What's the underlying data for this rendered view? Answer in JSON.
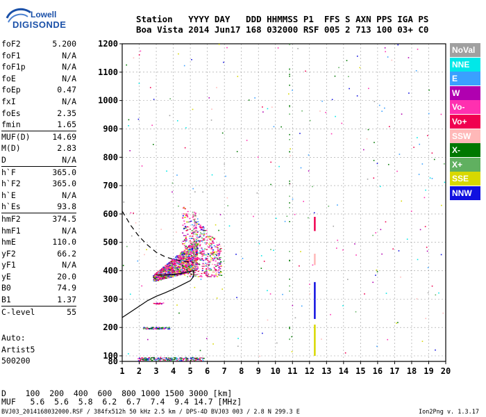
{
  "logo": {
    "line1": "Lowell",
    "line2": "DIGISONDE"
  },
  "header": {
    "labels": "Station   YYYY DAY   DDD HHMMSS P1  FFS S AXN PPS IGA PS",
    "values": "Boa Vista 2014 Jun17 168 032000 RSF 005 2 713 100 03+ C0"
  },
  "params": {
    "group1": [
      {
        "name": "foF2",
        "value": "5.200"
      },
      {
        "name": "foF1",
        "value": "N/A"
      },
      {
        "name": "foF1p",
        "value": "N/A"
      },
      {
        "name": "foE",
        "value": "N/A"
      },
      {
        "name": "foEp",
        "value": "0.47"
      },
      {
        "name": "fxI",
        "value": "N/A"
      },
      {
        "name": "foEs",
        "value": "2.35"
      },
      {
        "name": "fmin",
        "value": "1.65"
      }
    ],
    "group2": [
      {
        "name": "MUF(D)",
        "value": "14.69"
      },
      {
        "name": "M(D)",
        "value": "2.83"
      },
      {
        "name": "D",
        "value": "N/A"
      }
    ],
    "group3": [
      {
        "name": "h`F",
        "value": "365.0"
      },
      {
        "name": "h`F2",
        "value": "365.0"
      },
      {
        "name": "h`E",
        "value": "N/A"
      },
      {
        "name": "h`Es",
        "value": "93.8"
      }
    ],
    "group4": [
      {
        "name": "hmF2",
        "value": "374.5"
      },
      {
        "name": "hmF1",
        "value": "N/A"
      },
      {
        "name": "hmE",
        "value": "110.0"
      },
      {
        "name": "yF2",
        "value": "66.2"
      },
      {
        "name": "yF1",
        "value": "N/A"
      },
      {
        "name": "yE",
        "value": "20.0"
      },
      {
        "name": "B0",
        "value": "74.9"
      },
      {
        "name": "B1",
        "value": "1.37"
      }
    ],
    "group5": [
      {
        "name": "C-level",
        "value": "55"
      }
    ]
  },
  "auto": {
    "line1": "Auto:",
    "line2": "Artist5",
    "line3": "500200"
  },
  "legend": [
    {
      "label": "NoVal",
      "color": "#a0a0a0"
    },
    {
      "label": "NNE",
      "color": "#00e8e8"
    },
    {
      "label": "E",
      "color": "#3aa0ff"
    },
    {
      "label": "W",
      "color": "#b000b0"
    },
    {
      "label": "Vo-",
      "color": "#ff30b0"
    },
    {
      "label": "Vo+",
      "color": "#f00050"
    },
    {
      "label": "SSW",
      "color": "#ffb8b8"
    },
    {
      "label": "X-",
      "color": "#007800"
    },
    {
      "label": "X+",
      "color": "#60b060"
    },
    {
      "label": "SSE",
      "color": "#d8d800"
    },
    {
      "label": "NNW",
      "color": "#1010e0"
    }
  ],
  "chart_data": {
    "type": "scatter",
    "xlim": [
      1,
      20
    ],
    "ylim": [
      80,
      1200
    ],
    "x_ticks": [
      1,
      2,
      3,
      4,
      5,
      6,
      7,
      8,
      9,
      10,
      11,
      12,
      13,
      14,
      15,
      16,
      17,
      18,
      19,
      20
    ],
    "y_ticks": [
      80,
      100,
      200,
      300,
      400,
      500,
      600,
      700,
      800,
      900,
      1000,
      1100,
      1200
    ],
    "grid": true,
    "profile_solid": [
      [
        1.0,
        235
      ],
      [
        1.5,
        255
      ],
      [
        2.0,
        275
      ],
      [
        2.5,
        295
      ],
      [
        3.0,
        310
      ],
      [
        3.5,
        322
      ],
      [
        4.0,
        335
      ],
      [
        4.5,
        350
      ],
      [
        5.0,
        365
      ],
      [
        5.2,
        380
      ],
      [
        5.2,
        400
      ],
      [
        4.8,
        395
      ],
      [
        4.4,
        390
      ],
      [
        4.0,
        387
      ],
      [
        3.6,
        385
      ],
      [
        3.0,
        385
      ]
    ],
    "profile_dashed": [
      [
        1.0,
        610
      ],
      [
        1.5,
        560
      ],
      [
        2.0,
        520
      ],
      [
        2.5,
        490
      ],
      [
        3.0,
        465
      ],
      [
        3.5,
        450
      ],
      [
        4.0,
        440
      ],
      [
        4.5,
        435
      ],
      [
        5.0,
        430
      ],
      [
        5.2,
        428
      ]
    ],
    "trace_F2_x": [
      2.9,
      5.4
    ],
    "trace_F2_y": [
      370,
      470
    ],
    "es_trace": {
      "x": [
        2.2,
        3.8
      ],
      "h": [
        196,
        200
      ]
    },
    "low_trace": {
      "x": [
        1.9,
        5.8
      ],
      "h": [
        85,
        95
      ]
    }
  },
  "bottom": {
    "d_line": "D    100  200  400  600  800 1000 1500 3000 [km]",
    "muf_line": "MUF   5.6  5.6  5.8  6.2  6.7  7.4  9.4 14.7 [MHz]"
  },
  "footer": {
    "left": "BVJ03_2014168032000.RSF / 384fx512h 50 kHz 2.5 km / DPS-4D BVJ03 003 / 2.8 N 299.3 E",
    "right": "Ion2Png v. 1.3.17"
  }
}
